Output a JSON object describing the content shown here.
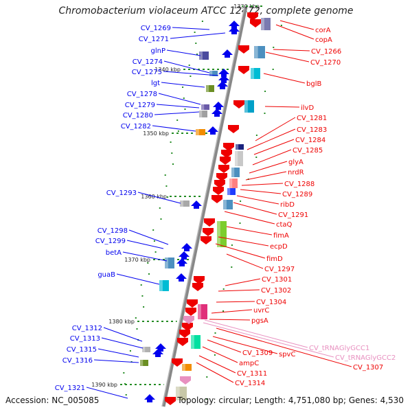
{
  "title": "Chromobacterium violaceum ATCC 12472, complete genome",
  "footer": {
    "accession": "Accession: NC_005085",
    "summary": "Topology: circular; Length: 4,751,080 bp; Genes: 4,530"
  },
  "ticks": [
    "1330 kbp",
    "1340 kbp",
    "1350 kbp",
    "1360 kbp",
    "1370 kbp",
    "1380 kbp",
    "1390 kbp"
  ],
  "left_genes": [
    "CV_1269",
    "CV_1271",
    "glnP",
    "CV_1274",
    "CV_1275",
    "lgt",
    "CV_1278",
    "CV_1279",
    "CV_1280",
    "CV_1282",
    "CV_1293",
    "CV_1298",
    "CV_1299",
    "betA",
    "guaB",
    "CV_1312",
    "CV_1313",
    "CV_1315",
    "CV_1316",
    "CV_1321"
  ],
  "right_genes": [
    "corA",
    "copA",
    "CV_1266",
    "CV_1270",
    "bglB",
    "ilvD",
    "CV_1281",
    "CV_1283",
    "CV_1284",
    "CV_1285",
    "glyA",
    "nrdR",
    "CV_1288",
    "CV_1289",
    "ribD",
    "CV_1291",
    "ctaQ",
    "fimA",
    "ecpD",
    "fimD",
    "CV_1297",
    "CV_1301",
    "CV_1302",
    "CV_1304",
    "uvrC",
    "pgsA",
    "CV_1309",
    "spvC",
    "ampC",
    "CV_1311",
    "CV_1314",
    "CV_1307"
  ],
  "trna_genes": [
    "CV_tRNAGlyGCC1",
    "CV_tRNAGlyGCC2"
  ],
  "colors": {
    "forward": "#0000ee",
    "reverse": "#ee0000",
    "trna": "#e890c0",
    "backbone": "#888888",
    "tick": "#228b22"
  }
}
